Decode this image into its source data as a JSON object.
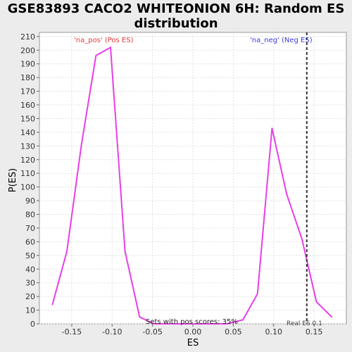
{
  "chart_data": {
    "type": "line",
    "title_line1": "GSE83893 CACO2 WHITEONION 6H: Random ES",
    "title_line2": "distribution",
    "xlabel": "ES",
    "ylabel": "P(ES)",
    "xlim": [
      -0.19,
      0.19
    ],
    "ylim": [
      0,
      213
    ],
    "x_ticks": [
      -0.15,
      -0.1,
      -0.05,
      0.0,
      0.05,
      0.1,
      0.15
    ],
    "x_tick_labels": [
      "-0.15",
      "-0.10",
      "-0.05",
      "0.00",
      "0.05",
      "0.10",
      "0.15"
    ],
    "y_ticks": [
      0,
      10,
      20,
      30,
      40,
      50,
      60,
      70,
      80,
      90,
      100,
      110,
      120,
      130,
      140,
      150,
      160,
      170,
      180,
      190,
      200,
      210
    ],
    "grid": true,
    "series": [
      {
        "color": "#e83ee8",
        "x": [
          -0.174,
          -0.156,
          -0.138,
          -0.12,
          -0.102,
          -0.084,
          -0.066,
          -0.048,
          -0.03,
          -0.012,
          0.006,
          0.024,
          0.042,
          0.062,
          0.08,
          0.098,
          0.116,
          0.135,
          0.153,
          0.172
        ],
        "y": [
          14,
          53,
          131,
          196,
          202,
          53,
          5,
          0,
          0,
          0,
          0,
          0,
          0,
          3,
          22,
          143,
          95,
          62,
          16,
          5
        ]
      }
    ],
    "real_es": 0.141,
    "real_es_color": "#333333",
    "annotations": {
      "pos_label": "'na_pos' (Pos ES)",
      "pos_color": "#e03c3c",
      "neg_label": "'na_neg' (Neg ES)",
      "neg_color": "#3c3ce0",
      "pos_scores": "Sets with pos scores: 35%",
      "real_es_label": "Real ES 0.1"
    }
  }
}
